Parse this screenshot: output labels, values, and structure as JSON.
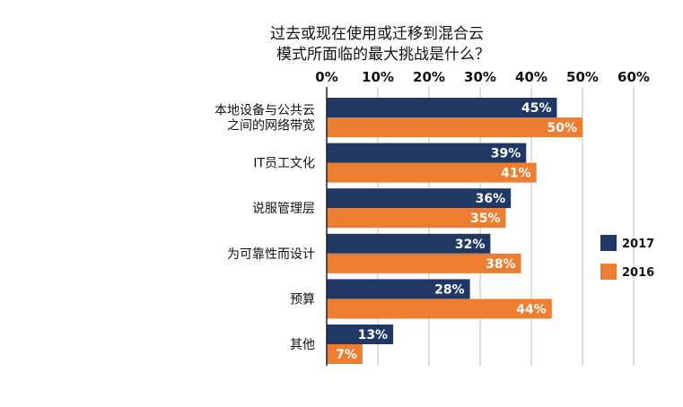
{
  "chart_data": {
    "type": "bar",
    "orientation": "horizontal",
    "title": [
      "过去或现在使用或迁移到混合云",
      "模式所面临的最大挑战是什么？"
    ],
    "categories": [
      [
        "本地设备与公共云",
        "之间的网络带宽"
      ],
      [
        "IT员工文化"
      ],
      [
        "说服管理层"
      ],
      [
        "为可靠性而设计"
      ],
      [
        "预算"
      ],
      [
        "其他"
      ]
    ],
    "series": [
      {
        "name": "2017",
        "color": "#1f3864",
        "values": [
          45,
          39,
          36,
          32,
          28,
          13
        ]
      },
      {
        "name": "2016",
        "color": "#ed7d31",
        "values": [
          50,
          41,
          35,
          38,
          44,
          7
        ]
      }
    ],
    "xlim": [
      0,
      60
    ],
    "ticks": [
      0,
      10,
      20,
      30,
      40,
      50,
      60
    ],
    "tick_suffix": "%",
    "value_suffix": "%",
    "x_axis_position": "top",
    "grid": true,
    "legend_position": "right"
  }
}
